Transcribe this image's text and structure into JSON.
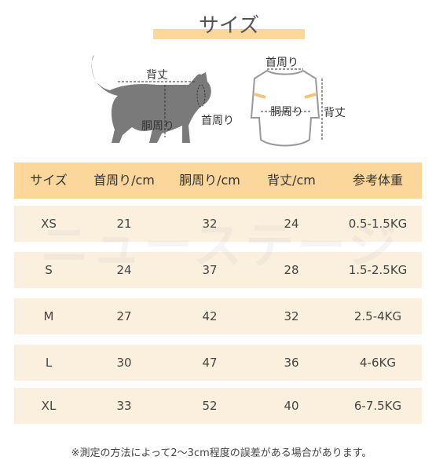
{
  "header": {
    "title": "サイズ"
  },
  "diagram": {
    "cat": {
      "back": "背丈",
      "body": "胴周り",
      "neck": "首周り"
    },
    "shirt": {
      "neck": "首周り",
      "body": "胴周り",
      "back": "背丈"
    }
  },
  "table": {
    "header": [
      "サイズ",
      "首周り/cm",
      "胴周り/cm",
      "背丈/cm",
      "参考体重"
    ],
    "rows": [
      [
        "XS",
        "21",
        "32",
        "24",
        "0.5-1.5KG"
      ],
      [
        "S",
        "24",
        "37",
        "28",
        "1.5-2.5KG"
      ],
      [
        "M",
        "27",
        "42",
        "32",
        "2.5-4KG"
      ],
      [
        "L",
        "30",
        "47",
        "36",
        "4-6KG"
      ],
      [
        "XL",
        "33",
        "52",
        "40",
        "6-7.5KG"
      ]
    ]
  },
  "watermark": "ニューステージ",
  "footnote": "※測定の方法によって2〜3cm程度の誤差がある場合があります。"
}
